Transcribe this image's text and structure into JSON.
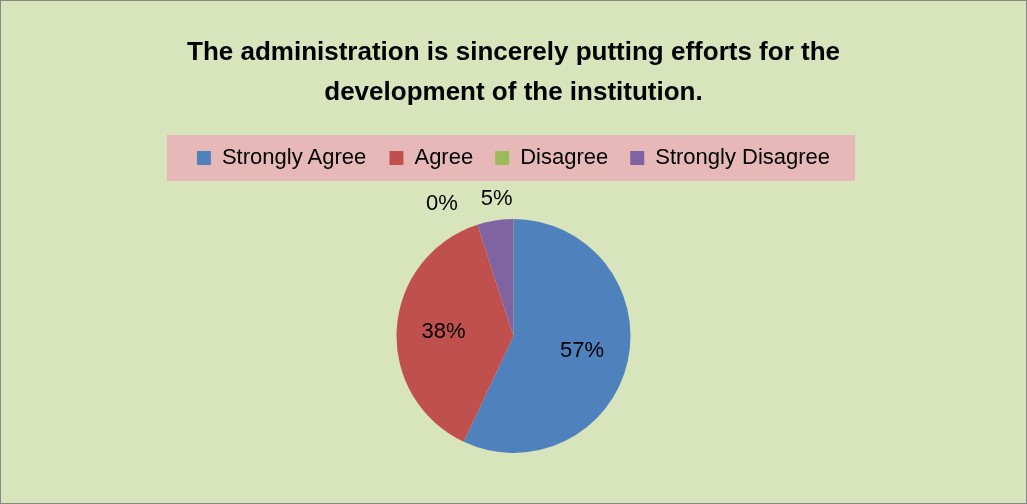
{
  "chart_data": {
    "type": "pie",
    "title": "The administration is sincerely putting efforts for the development of the institution.",
    "categories": [
      "Strongly Agree",
      "Agree",
      "Disagree",
      "Strongly Disagree"
    ],
    "values": [
      57,
      38,
      0,
      5
    ],
    "colors": [
      "#4f81bd",
      "#c0504d",
      "#9bbb59",
      "#8064a2"
    ],
    "value_labels": [
      "57%",
      "38%",
      "0%",
      "5%"
    ],
    "legend": "top"
  }
}
